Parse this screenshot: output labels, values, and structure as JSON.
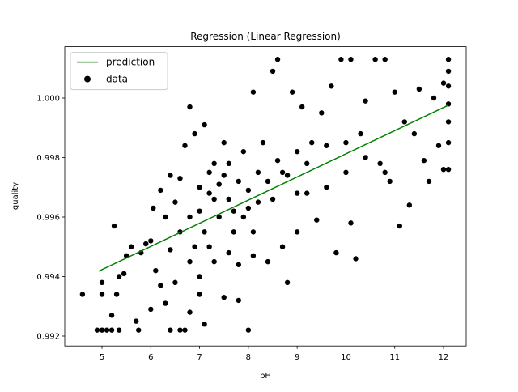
{
  "chart_data": {
    "type": "scatter",
    "title": "Regression (Linear Regression)",
    "xlabel": "pH",
    "ylabel": "quality",
    "xlim": [
      4.237,
      12.464
    ],
    "ylim": [
      0.991668,
      1.001725
    ],
    "xticks": [
      5,
      6,
      7,
      8,
      9,
      10,
      11,
      12
    ],
    "yticks": [
      0.992,
      0.994,
      0.996,
      0.998,
      {
        "value": 1,
        "label": "1.000"
      }
    ],
    "legend": "upper left",
    "line": {
      "name": "prediction",
      "color": "#008000",
      "x": [
        4.93,
        12.1
      ],
      "y": [
        0.99418,
        0.99976
      ]
    },
    "series": [
      {
        "name": "data",
        "color": "#000000",
        "x": [
          4.6,
          4.9,
          5.0,
          5.1,
          5.2,
          5.35,
          5.2,
          5.25,
          5.0,
          5.0,
          5.3,
          5.35,
          5.45,
          5.5,
          5.6,
          5.7,
          5.75,
          5.8,
          5.9,
          6.0,
          6.0,
          6.05,
          6.1,
          6.2,
          6.2,
          6.3,
          6.4,
          6.4,
          6.5,
          6.6,
          6.6,
          6.7,
          6.7,
          6.8,
          6.8,
          6.9,
          7.0,
          7.0,
          7.1,
          7.1,
          7.2,
          7.3,
          7.3,
          7.4,
          7.5,
          7.5,
          7.6,
          7.7,
          7.8,
          7.9,
          8.0,
          8.0,
          8.1,
          8.1,
          8.2,
          8.3,
          8.4,
          8.5,
          8.5,
          8.6,
          8.7,
          8.8,
          8.9,
          9.0,
          9.0,
          9.1,
          9.2,
          9.3,
          9.4,
          9.5,
          9.6,
          9.7,
          9.8,
          9.9,
          10.0,
          10.1,
          10.1,
          10.2,
          10.3,
          10.4,
          10.6,
          10.7,
          10.8,
          10.9,
          11.0,
          11.1,
          11.2,
          11.3,
          11.4,
          11.5,
          11.6,
          11.7,
          11.8,
          11.9,
          12.0,
          12.1,
          12.1,
          12.1,
          12.1,
          12.1,
          12.1,
          12.1,
          12.0,
          6.5,
          6.8,
          7.0,
          7.2,
          7.4,
          7.6,
          7.8,
          8.0,
          7.1,
          6.9,
          7.3,
          7.5,
          7.7,
          7.9,
          6.6,
          6.3,
          8.2,
          8.4,
          8.6,
          8.8,
          9.0,
          6.4,
          7.2,
          7.6,
          8.1,
          8.7,
          9.2,
          9.6,
          10.0,
          10.4,
          10.8,
          7.0,
          7.8,
          6.8
        ],
        "y": [
          0.9934,
          0.9922,
          0.9922,
          0.9922,
          0.9922,
          0.9922,
          0.9927,
          0.9957,
          0.9938,
          0.9934,
          0.9934,
          0.994,
          0.9941,
          0.9947,
          0.995,
          0.9925,
          0.9922,
          0.9948,
          0.9951,
          0.9929,
          0.9952,
          0.9963,
          0.9942,
          0.9969,
          0.9937,
          0.9931,
          0.9922,
          0.9974,
          0.9938,
          0.9922,
          0.9973,
          0.9922,
          0.9984,
          0.9928,
          0.9997,
          0.9988,
          0.9962,
          0.9934,
          0.9924,
          0.9991,
          0.9975,
          0.9966,
          0.9945,
          0.9971,
          0.9985,
          0.9933,
          0.9978,
          0.9962,
          0.9932,
          0.9982,
          0.9922,
          0.9969,
          1.0002,
          0.9955,
          0.9975,
          0.9985,
          0.9945,
          0.9966,
          1.0009,
          1.0013,
          0.9975,
          0.9938,
          1.0002,
          0.9982,
          0.9955,
          0.9997,
          0.9968,
          0.9985,
          0.9959,
          0.9995,
          0.9984,
          1.0004,
          0.9948,
          1.0013,
          0.9975,
          1.0013,
          0.9958,
          0.9946,
          0.9988,
          0.9999,
          1.0013,
          0.9978,
          1.0013,
          0.9972,
          1.0002,
          0.9957,
          0.9992,
          0.9964,
          0.9988,
          1.0003,
          0.9979,
          0.9972,
          1.0,
          0.9984,
          0.9976,
          1.0013,
          1.0009,
          1.0004,
          0.9998,
          0.9992,
          0.9985,
          0.9976,
          1.0005,
          0.9965,
          0.996,
          0.997,
          0.9968,
          0.996,
          0.9966,
          0.9972,
          0.9963,
          0.9955,
          0.995,
          0.9978,
          0.9974,
          0.9955,
          0.996,
          0.9955,
          0.996,
          0.9965,
          0.9972,
          0.9979,
          0.9974,
          0.9968,
          0.9949,
          0.995,
          0.9948,
          0.9947,
          0.995,
          0.9978,
          0.997,
          0.9985,
          0.998,
          0.9975,
          0.994,
          0.9944,
          0.9945
        ]
      }
    ]
  }
}
